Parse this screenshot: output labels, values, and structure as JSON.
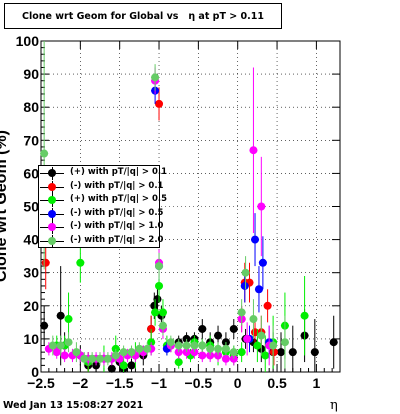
{
  "title": "Clone wrt Geom for Global vs   η at pT > 0.11",
  "ylabel": "Clone wrt Geom (%)",
  "xlabel": "η",
  "timestamp": "Wed Jan 13 15:08:27 2021",
  "chart_data": {
    "type": "scatter",
    "title": "Clone wrt Geom for Global vs   η at pT > 0.11",
    "xlabel": "η",
    "ylabel": "Clone wrt Geom (%)",
    "xlim": [
      -2.5,
      1.3
    ],
    "ylim": [
      0,
      100
    ],
    "x_ticks": [
      -2.5,
      -2,
      -1.5,
      -1,
      -0.5,
      0,
      0.5,
      1
    ],
    "x_tick_labels": [
      "−2.5",
      "−2",
      "−1.5",
      "−1",
      "−0.5",
      "0",
      "0.5",
      "1"
    ],
    "y_ticks": [
      0,
      10,
      20,
      30,
      40,
      50,
      60,
      70,
      80,
      90,
      100
    ],
    "y_tick_labels": [
      "0",
      "10",
      "20",
      "30",
      "40",
      "50",
      "60",
      "70",
      "80",
      "90",
      "100"
    ],
    "grid": true,
    "legend_position": "left-middle",
    "series": [
      {
        "name": "(+) with pT/|q| > 0.1",
        "color": "#000000",
        "points": [
          [
            -2.46,
            14,
            6
          ],
          [
            -2.25,
            17,
            15
          ],
          [
            -2.2,
            8,
            4
          ],
          [
            -2.0,
            5,
            3
          ],
          [
            -1.9,
            2,
            3
          ],
          [
            -1.8,
            2,
            2
          ],
          [
            -1.6,
            1,
            3
          ],
          [
            -1.5,
            3,
            3
          ],
          [
            -1.45,
            1,
            2
          ],
          [
            -1.35,
            2,
            2
          ],
          [
            -1.2,
            5,
            3
          ],
          [
            -1.1,
            13,
            4
          ],
          [
            -1.06,
            20,
            4
          ],
          [
            -1.02,
            22,
            4
          ],
          [
            -0.97,
            17,
            3
          ],
          [
            -0.85,
            8,
            2
          ],
          [
            -0.75,
            9,
            2
          ],
          [
            -0.65,
            10,
            2
          ],
          [
            -0.55,
            10,
            2
          ],
          [
            -0.45,
            13,
            3
          ],
          [
            -0.35,
            9,
            3
          ],
          [
            -0.25,
            11,
            3
          ],
          [
            -0.15,
            9,
            3
          ],
          [
            -0.05,
            13,
            3
          ],
          [
            0.1,
            10,
            3
          ],
          [
            0.2,
            9,
            3
          ],
          [
            0.3,
            7,
            4
          ],
          [
            0.45,
            6,
            6
          ],
          [
            0.55,
            6,
            6
          ],
          [
            0.7,
            6,
            8
          ],
          [
            0.85,
            11,
            8
          ],
          [
            0.98,
            6,
            10
          ],
          [
            1.22,
            9,
            8
          ]
        ]
      },
      {
        "name": "(-) with pT/|q| > 0.1",
        "color": "#ff0000",
        "points": [
          [
            -2.44,
            33,
            8
          ],
          [
            -1.9,
            3,
            3
          ],
          [
            -1.1,
            13,
            4
          ],
          [
            -1.0,
            81,
            5
          ],
          [
            0.05,
            16,
            4
          ],
          [
            0.09,
            27,
            6
          ],
          [
            0.15,
            27,
            6
          ],
          [
            0.22,
            12,
            5
          ],
          [
            0.3,
            12,
            5
          ],
          [
            0.38,
            20,
            5
          ],
          [
            0.46,
            6,
            4
          ]
        ]
      },
      {
        "name": "(+) with pT/|q| > 0.5",
        "color": "#00ee00",
        "points": [
          [
            -2.3,
            8,
            3
          ],
          [
            -2.2,
            8,
            3
          ],
          [
            -2.15,
            16,
            8
          ],
          [
            -2.0,
            33,
            6
          ],
          [
            -1.9,
            3,
            3
          ],
          [
            -1.7,
            4,
            4
          ],
          [
            -1.55,
            7,
            4
          ],
          [
            -1.45,
            2,
            4
          ],
          [
            -1.3,
            5,
            4
          ],
          [
            -1.1,
            9,
            4
          ],
          [
            -1.05,
            18,
            4
          ],
          [
            -1.0,
            26,
            5
          ],
          [
            -0.95,
            18,
            4
          ],
          [
            -0.9,
            8,
            3
          ],
          [
            -0.75,
            3,
            2
          ],
          [
            -0.6,
            5,
            2
          ],
          [
            -0.55,
            9,
            2
          ],
          [
            -0.45,
            8,
            2
          ],
          [
            -0.35,
            8,
            3
          ],
          [
            -0.25,
            5,
            3
          ],
          [
            -0.15,
            6,
            3
          ],
          [
            -0.05,
            5,
            3
          ],
          [
            0.05,
            6,
            3
          ],
          [
            0.15,
            10,
            4
          ],
          [
            0.25,
            8,
            5
          ],
          [
            0.35,
            5,
            6
          ],
          [
            0.45,
            9,
            8
          ],
          [
            0.6,
            14,
            10
          ],
          [
            0.85,
            17,
            12
          ]
        ]
      },
      {
        "name": "(-) with pT/|q| > 0.5",
        "color": "#0000ff",
        "points": [
          [
            -1.05,
            85,
            4
          ],
          [
            -1.0,
            32,
            4
          ],
          [
            -0.9,
            7,
            2
          ],
          [
            0.09,
            26,
            5
          ],
          [
            0.15,
            10,
            4
          ],
          [
            0.22,
            40,
            8
          ],
          [
            0.27,
            25,
            7
          ],
          [
            0.32,
            33,
            8
          ],
          [
            0.4,
            9,
            5
          ]
        ]
      },
      {
        "name": "(-) with pT/|q| > 1.0",
        "color": "#ff00ff",
        "points": [
          [
            -2.4,
            7,
            2
          ],
          [
            -2.3,
            6,
            2
          ],
          [
            -2.2,
            5,
            2
          ],
          [
            -2.1,
            5,
            2
          ],
          [
            -2.0,
            5,
            2
          ],
          [
            -1.9,
            4,
            2
          ],
          [
            -1.8,
            4,
            2
          ],
          [
            -1.7,
            4,
            2
          ],
          [
            -1.6,
            4,
            2
          ],
          [
            -1.5,
            4,
            2
          ],
          [
            -1.4,
            5,
            2
          ],
          [
            -1.3,
            5,
            2
          ],
          [
            -1.2,
            6,
            2
          ],
          [
            -1.1,
            7,
            2
          ],
          [
            -1.05,
            88,
            4
          ],
          [
            -1.0,
            33,
            4
          ],
          [
            -0.95,
            13,
            3
          ],
          [
            -0.85,
            8,
            2
          ],
          [
            -0.75,
            6,
            2
          ],
          [
            -0.65,
            6,
            2
          ],
          [
            -0.55,
            6,
            2
          ],
          [
            -0.45,
            5,
            2
          ],
          [
            -0.35,
            5,
            2
          ],
          [
            -0.25,
            5,
            2
          ],
          [
            -0.15,
            4,
            2
          ],
          [
            -0.05,
            4,
            2
          ],
          [
            0.05,
            16,
            4
          ],
          [
            0.12,
            10,
            5
          ],
          [
            0.2,
            67,
            25
          ],
          [
            0.3,
            50,
            15
          ],
          [
            0.4,
            8,
            6
          ]
        ]
      },
      {
        "name": "(-) with pT/|q| > 2.0",
        "color": "#66cc66",
        "points": [
          [
            -2.46,
            66,
            35
          ],
          [
            -2.35,
            8,
            3
          ],
          [
            -2.25,
            8,
            3
          ],
          [
            -2.15,
            9,
            3
          ],
          [
            -2.05,
            6,
            3
          ],
          [
            -1.95,
            4,
            2
          ],
          [
            -1.85,
            4,
            2
          ],
          [
            -1.75,
            4,
            2
          ],
          [
            -1.65,
            4,
            2
          ],
          [
            -1.55,
            5,
            2
          ],
          [
            -1.45,
            6,
            2
          ],
          [
            -1.35,
            6,
            2
          ],
          [
            -1.25,
            7,
            2
          ],
          [
            -1.15,
            7,
            2
          ],
          [
            -1.05,
            89,
            4
          ],
          [
            -1.0,
            32,
            4
          ],
          [
            -0.95,
            14,
            3
          ],
          [
            -0.85,
            9,
            2
          ],
          [
            -0.75,
            8,
            2
          ],
          [
            -0.65,
            8,
            2
          ],
          [
            -0.55,
            8,
            2
          ],
          [
            -0.45,
            8,
            2
          ],
          [
            -0.35,
            7,
            2
          ],
          [
            -0.25,
            7,
            2
          ],
          [
            -0.15,
            7,
            2
          ],
          [
            -0.05,
            6,
            2
          ],
          [
            0.05,
            18,
            4
          ],
          [
            0.1,
            30,
            5
          ],
          [
            0.2,
            16,
            6
          ],
          [
            0.3,
            11,
            6
          ],
          [
            0.45,
            8,
            6
          ],
          [
            0.6,
            9,
            8
          ]
        ]
      }
    ]
  }
}
